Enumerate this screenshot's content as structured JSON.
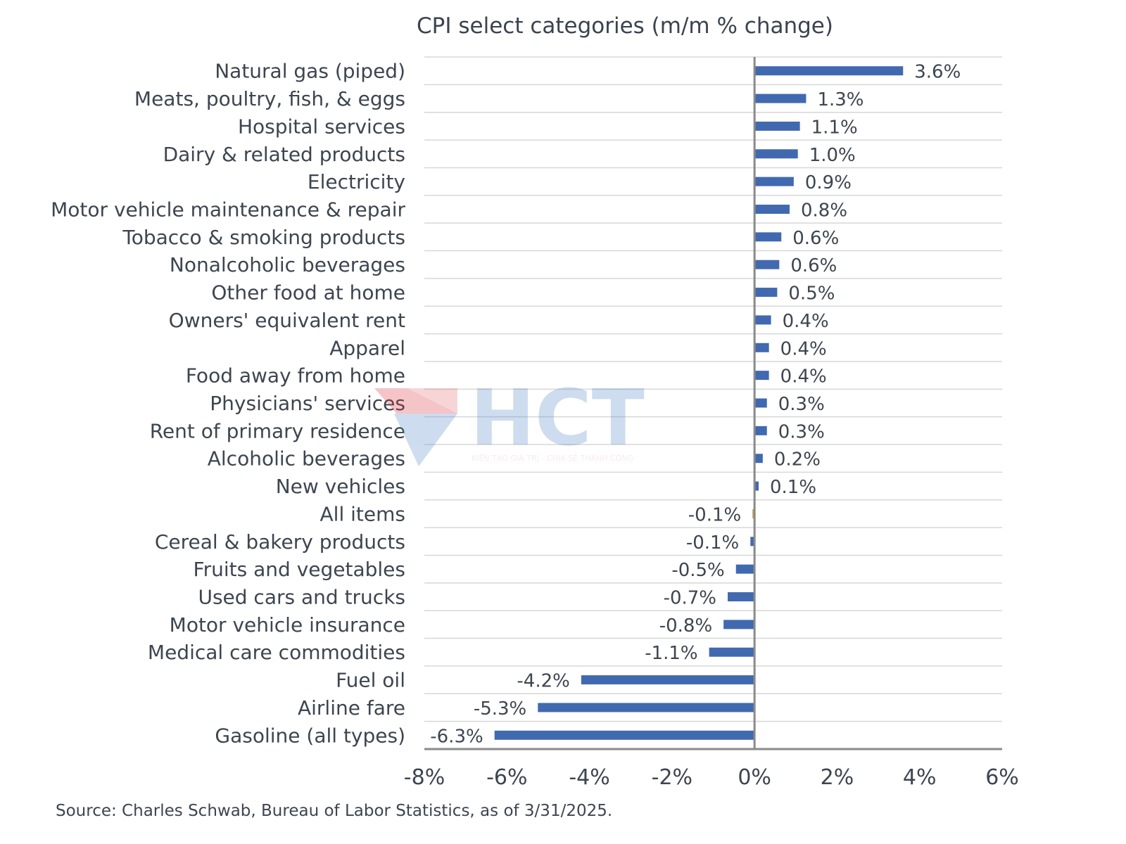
{
  "chart_data": {
    "type": "bar",
    "orientation": "horizontal",
    "title": "CPI select categories (m/m % change)",
    "categories": [
      "Natural gas (piped)",
      "Meats, poultry, fish, & eggs",
      "Hospital services",
      "Dairy & related products",
      "Electricity",
      "Motor vehicle maintenance & repair",
      "Tobacco & smoking products",
      "Nonalcoholic beverages",
      "Other food at home",
      "Owners' equivalent rent",
      "Apparel",
      "Food away from home",
      "Physicians' services",
      "Rent of primary residence",
      "Alcoholic beverages",
      "New vehicles",
      "All items",
      "Cereal & bakery products",
      "Fruits and vegetables",
      "Used cars and trucks",
      "Motor vehicle insurance",
      "Medical care commodities",
      "Fuel oil",
      "Airline fare",
      "Gasoline (all types)"
    ],
    "values": [
      3.6,
      1.25,
      1.1,
      1.05,
      0.95,
      0.85,
      0.65,
      0.6,
      0.55,
      0.4,
      0.35,
      0.35,
      0.3,
      0.3,
      0.2,
      0.1,
      -0.05,
      -0.1,
      -0.45,
      -0.65,
      -0.75,
      -1.1,
      -4.2,
      -5.25,
      -6.3
    ],
    "data_labels": [
      "3.6%",
      "1.3%",
      "1.1%",
      "1.0%",
      "0.9%",
      "0.8%",
      "0.6%",
      "0.6%",
      "0.5%",
      "0.4%",
      "0.4%",
      "0.4%",
      "0.3%",
      "0.3%",
      "0.2%",
      "0.1%",
      "-0.1%",
      "-0.1%",
      "-0.5%",
      "-0.7%",
      "-0.8%",
      "-1.1%",
      "-4.2%",
      "-5.3%",
      "-6.3%"
    ],
    "highlight_category": "All items",
    "xlim": [
      -8,
      6
    ],
    "xticks": [
      -8,
      -6,
      -4,
      -2,
      0,
      2,
      4,
      6
    ],
    "xtick_labels": [
      "-8%",
      "-6%",
      "-4%",
      "-2%",
      "0%",
      "2%",
      "4%",
      "6%"
    ],
    "xlabel": "",
    "ylabel": "",
    "grid": "horizontal",
    "legend": "none",
    "colors": {
      "bar": "#4169b0",
      "highlight_bar": "#c9a24a",
      "gridline": "#d7d7d7",
      "axis": "#8a8a8a",
      "text": "#3d4550"
    }
  },
  "source": "Source: Charles Schwab, Bureau of Labor Statistics, as of  3/31/2025.",
  "watermark": {
    "logo": "HCT",
    "tagline": "KIẾN TẠO GIÁ TRỊ - CHIA SẺ THÀNH CÔNG"
  }
}
